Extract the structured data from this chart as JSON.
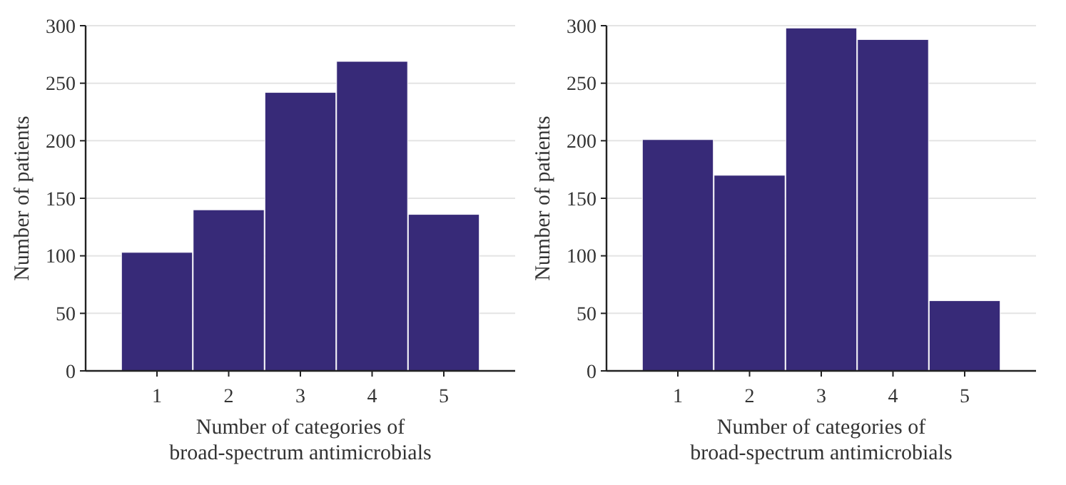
{
  "chart_data": [
    {
      "type": "bar",
      "categories": [
        "1",
        "2",
        "3",
        "4",
        "5"
      ],
      "values": [
        103,
        140,
        242,
        269,
        136
      ],
      "color": "#372a78",
      "ylim": [
        0,
        300
      ],
      "yticks": [
        0,
        50,
        100,
        150,
        200,
        250,
        300
      ],
      "grid": "y",
      "xlabel": "Number of categories of\nbroad-spectrum antimicrobials",
      "ylabel": "Number of patients"
    },
    {
      "type": "bar",
      "categories": [
        "1",
        "2",
        "3",
        "4",
        "5"
      ],
      "values": [
        201,
        170,
        298,
        288,
        61
      ],
      "color": "#372a78",
      "ylim": [
        0,
        300
      ],
      "yticks": [
        0,
        50,
        100,
        150,
        200,
        250,
        300
      ],
      "grid": "y",
      "xlabel": "Number of categories of\nbroad-spectrum antimicrobials",
      "ylabel": "Number of patients"
    }
  ]
}
